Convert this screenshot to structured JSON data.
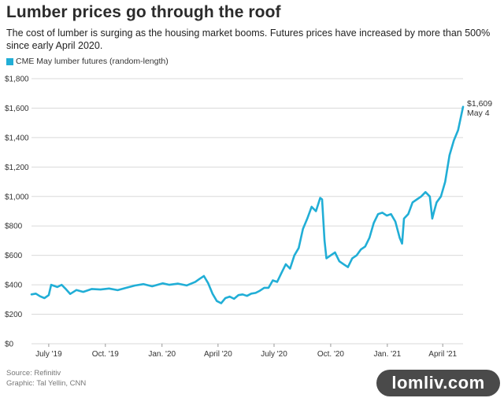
{
  "header": {
    "title": "Lumber prices go through the roof",
    "subtitle": "The cost of lumber is surging as the housing market booms. Futures prices have increased by more than 500% since early April 2020."
  },
  "legend": {
    "label": "CME May lumber futures (random-length)"
  },
  "footer": {
    "source": "Source: Refinitiv",
    "credit": "Graphic: Tal Yellin, CNN"
  },
  "watermark": {
    "text": "lomliv.com"
  },
  "colors": {
    "series": "#21aed6",
    "grid": "#d9d9d9",
    "text": "#333333"
  },
  "chart_data": {
    "type": "line",
    "title": "Lumber prices go through the roof",
    "ylim": [
      0,
      1800
    ],
    "yticks": [
      {
        "value": 0,
        "label": "$0"
      },
      {
        "value": 200,
        "label": "$200"
      },
      {
        "value": 400,
        "label": "$400"
      },
      {
        "value": 600,
        "label": "$600"
      },
      {
        "value": 800,
        "label": "$800"
      },
      {
        "value": 1000,
        "label": "$1,000"
      },
      {
        "value": 1200,
        "label": "$1,200"
      },
      {
        "value": 1400,
        "label": "$1,400"
      },
      {
        "value": 1600,
        "label": "$1,600"
      },
      {
        "value": 1800,
        "label": "$1,800"
      }
    ],
    "xlim": [
      "2019-06-03",
      "2021-05-04"
    ],
    "xticks": [
      {
        "date": "2019-07-01",
        "label": "July '19"
      },
      {
        "date": "2019-10-01",
        "label": "Oct. '19"
      },
      {
        "date": "2020-01-01",
        "label": "Jan. '20"
      },
      {
        "date": "2020-04-01",
        "label": "April '20"
      },
      {
        "date": "2020-07-01",
        "label": "July '20"
      },
      {
        "date": "2020-10-01",
        "label": "Oct. '20"
      },
      {
        "date": "2021-01-01",
        "label": "Jan. '21"
      },
      {
        "date": "2021-04-01",
        "label": "April '21"
      }
    ],
    "grid": true,
    "legend_position": "top-left",
    "annotation": {
      "value_label": "$1,609",
      "date_label": "May 4"
    },
    "series": [
      {
        "name": "CME May lumber futures (random-length)",
        "points": [
          [
            "2019-06-03",
            335
          ],
          [
            "2019-06-10",
            340
          ],
          [
            "2019-06-17",
            322
          ],
          [
            "2019-06-24",
            310
          ],
          [
            "2019-07-01",
            330
          ],
          [
            "2019-07-05",
            400
          ],
          [
            "2019-07-15",
            385
          ],
          [
            "2019-07-22",
            400
          ],
          [
            "2019-07-29",
            370
          ],
          [
            "2019-08-05",
            338
          ],
          [
            "2019-08-15",
            365
          ],
          [
            "2019-08-26",
            352
          ],
          [
            "2019-09-09",
            372
          ],
          [
            "2019-09-23",
            368
          ],
          [
            "2019-10-07",
            375
          ],
          [
            "2019-10-21",
            364
          ],
          [
            "2019-11-04",
            380
          ],
          [
            "2019-11-18",
            395
          ],
          [
            "2019-12-02",
            405
          ],
          [
            "2019-12-16",
            390
          ],
          [
            "2020-01-02",
            410
          ],
          [
            "2020-01-13",
            400
          ],
          [
            "2020-01-27",
            408
          ],
          [
            "2020-02-10",
            396
          ],
          [
            "2020-02-24",
            420
          ],
          [
            "2020-03-02",
            440
          ],
          [
            "2020-03-09",
            460
          ],
          [
            "2020-03-16",
            410
          ],
          [
            "2020-03-23",
            340
          ],
          [
            "2020-03-30",
            290
          ],
          [
            "2020-04-06",
            275
          ],
          [
            "2020-04-13",
            310
          ],
          [
            "2020-04-20",
            320
          ],
          [
            "2020-04-27",
            305
          ],
          [
            "2020-05-04",
            330
          ],
          [
            "2020-05-11",
            335
          ],
          [
            "2020-05-18",
            325
          ],
          [
            "2020-05-25",
            340
          ],
          [
            "2020-06-01",
            345
          ],
          [
            "2020-06-08",
            360
          ],
          [
            "2020-06-15",
            380
          ],
          [
            "2020-06-22",
            380
          ],
          [
            "2020-06-29",
            430
          ],
          [
            "2020-07-06",
            420
          ],
          [
            "2020-07-13",
            480
          ],
          [
            "2020-07-20",
            540
          ],
          [
            "2020-07-27",
            510
          ],
          [
            "2020-08-03",
            600
          ],
          [
            "2020-08-10",
            650
          ],
          [
            "2020-08-17",
            780
          ],
          [
            "2020-08-24",
            850
          ],
          [
            "2020-08-31",
            930
          ],
          [
            "2020-09-07",
            900
          ],
          [
            "2020-09-14",
            990
          ],
          [
            "2020-09-17",
            980
          ],
          [
            "2020-09-21",
            700
          ],
          [
            "2020-09-24",
            580
          ],
          [
            "2020-10-01",
            600
          ],
          [
            "2020-10-08",
            620
          ],
          [
            "2020-10-15",
            560
          ],
          [
            "2020-10-22",
            540
          ],
          [
            "2020-10-29",
            520
          ],
          [
            "2020-11-05",
            580
          ],
          [
            "2020-11-12",
            600
          ],
          [
            "2020-11-19",
            640
          ],
          [
            "2020-11-26",
            660
          ],
          [
            "2020-12-03",
            720
          ],
          [
            "2020-12-10",
            820
          ],
          [
            "2020-12-17",
            880
          ],
          [
            "2020-12-24",
            890
          ],
          [
            "2020-12-31",
            870
          ],
          [
            "2021-01-07",
            880
          ],
          [
            "2021-01-14",
            830
          ],
          [
            "2021-01-21",
            720
          ],
          [
            "2021-01-25",
            680
          ],
          [
            "2021-01-28",
            850
          ],
          [
            "2021-02-04",
            880
          ],
          [
            "2021-02-11",
            960
          ],
          [
            "2021-02-18",
            980
          ],
          [
            "2021-02-25",
            1000
          ],
          [
            "2021-03-04",
            1030
          ],
          [
            "2021-03-11",
            1000
          ],
          [
            "2021-03-15",
            850
          ],
          [
            "2021-03-18",
            900
          ],
          [
            "2021-03-22",
            960
          ],
          [
            "2021-03-29",
            1000
          ],
          [
            "2021-04-05",
            1100
          ],
          [
            "2021-04-12",
            1280
          ],
          [
            "2021-04-19",
            1380
          ],
          [
            "2021-04-26",
            1450
          ],
          [
            "2021-05-04",
            1609
          ]
        ]
      }
    ]
  }
}
